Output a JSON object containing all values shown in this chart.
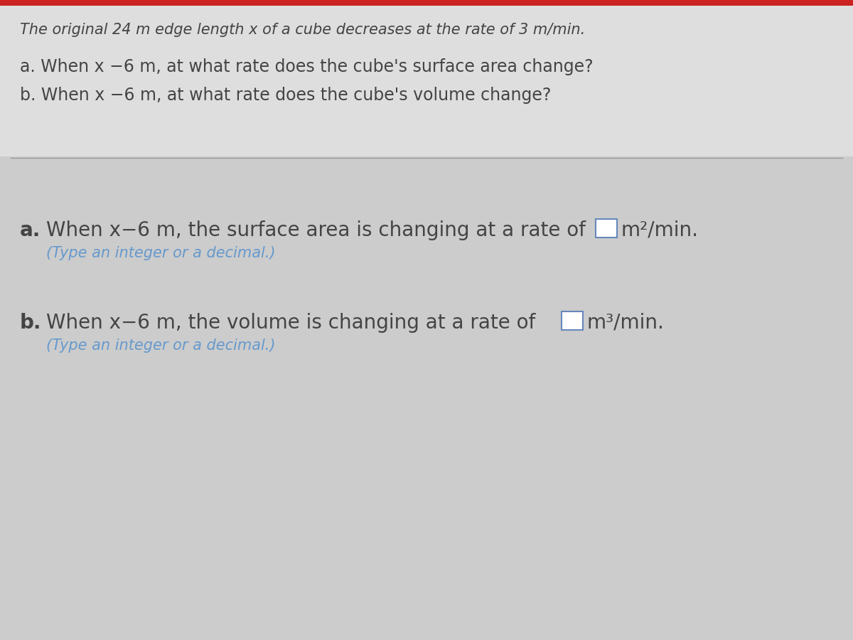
{
  "bg_color": "#cccccc",
  "top_section_bg": "#dedede",
  "text_color": "#444444",
  "hint_color": "#6699cc",
  "divider_color": "#999999",
  "red_bar_color": "#cc2222",
  "header_line": "The original 24 m edge length x of a cube decreases at the rate of 3 m/min.",
  "question_a": "a. When x −6 m, at what rate does the cube's surface area change?",
  "question_b": "b. When x −6 m, at what rate does the cube's volume change?",
  "answer_a_p1": "a.   When x = 6 m, the surface area is changing at a rate of",
  "answer_a_p2": "m²/min.",
  "answer_b_p1": "b.  When x = 6 m, the volume is changing at a rate of",
  "answer_b_p2": "m³/min.",
  "hint": "(Type an integer or a decimal.)",
  "header_fontsize": 15,
  "question_fontsize": 17,
  "answer_fontsize": 20,
  "hint_fontsize": 15,
  "box_color": "#6688bb"
}
